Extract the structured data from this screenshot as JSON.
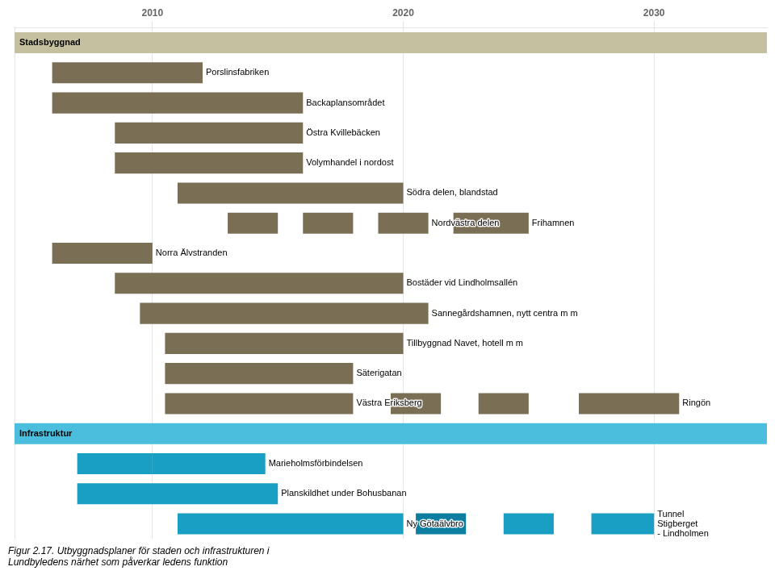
{
  "chart_data": {
    "type": "bar",
    "orientation": "horizontal",
    "subtitle": "Figur 2.17. Utbyggnadsplaner för staden och infrastrukturen i\nLundbyledens närhet som påverkar ledens funktion",
    "categories": [
      null,
      null,
      null,
      null,
      null,
      null,
      null,
      null,
      null,
      null,
      null,
      null,
      null,
      null,
      null,
      null,
      null
    ],
    "xlim": [
      2004.5,
      2034.5
    ],
    "xticks": [
      2010,
      2020,
      2030
    ],
    "grid": true,
    "tick_labels": "x",
    "data_labels": true,
    "series": [
      {
        "values": [
          [
            2004.5,
            2034.5
          ],
          null,
          null,
          null,
          null,
          null,
          null,
          null,
          null,
          null,
          null,
          null,
          null,
          [
            2004.5,
            2034.5
          ],
          null,
          null,
          null
        ],
        "colors": [
          "#c5c1a0",
          null,
          null,
          null,
          null,
          null,
          null,
          null,
          null,
          null,
          null,
          null,
          null,
          "#4bbedd",
          null,
          null,
          null
        ],
        "value_labels": [
          "Stadsbyggnad",
          null,
          null,
          null,
          null,
          null,
          null,
          null,
          null,
          null,
          null,
          null,
          null,
          "Infrastruktur",
          null,
          null,
          null
        ]
      },
      {
        "values": [
          null,
          [
            2006,
            2012
          ],
          [
            2006,
            2016
          ],
          [
            2008.5,
            2016
          ],
          [
            2008.5,
            2016
          ],
          [
            2011,
            2020
          ],
          [
            2013,
            2015
          ],
          [
            2006,
            2010
          ],
          [
            2008.5,
            2020
          ],
          [
            2009.5,
            2021
          ],
          [
            2010.5,
            2020
          ],
          [
            2010.5,
            2018
          ],
          [
            2010.5,
            2018
          ],
          null,
          [
            2010,
            2014.5
          ],
          [
            2007,
            2015
          ],
          [
            2011,
            2020
          ]
        ],
        "colors": [
          null,
          "#7a6e54",
          "#7a6e54",
          "#7a6e54",
          "#7a6e54",
          "#7a6e54",
          "#7a6e54",
          "#7a6e54",
          "#7a6e54",
          "#7a6e54",
          "#7a6e54",
          "#7a6e54",
          "#7a6e54",
          null,
          "#1a9fc4",
          "#1a9fc4",
          "#1a9fc4"
        ],
        "value_labels": [
          null,
          "Porslinsfabriken",
          "Backaplansområdet",
          "Östra Kvillebäcken",
          "Volymhandel i nordost",
          "Södra delen, blandstad",
          null,
          "Norra Älvstranden",
          "Bostäder vid Lindholmsallén",
          "Sannegårdshamnen, nytt centra m m",
          "Tillbyggnad Navet, hotell m m",
          "Säterigatan",
          "Västra Eriksberg",
          null,
          "Marieholmsförbindelsen",
          "Planskildhet under Bohusbanan",
          "Ny Götaälvbro"
        ]
      },
      {
        "values": [
          null,
          null,
          null,
          null,
          null,
          null,
          [
            2016,
            2018
          ],
          null,
          null,
          null,
          null,
          null,
          [
            2019.5,
            2021.5
          ],
          null,
          [
            2007,
            2010
          ],
          null,
          [
            2020.5,
            2022.5
          ]
        ],
        "colors": [
          null,
          null,
          null,
          null,
          null,
          null,
          "#7a6e54",
          null,
          null,
          null,
          null,
          null,
          "#7a6e54",
          null,
          "#1a9fc4",
          null,
          "#0d7da0"
        ]
      },
      {
        "values": [
          null,
          null,
          null,
          null,
          null,
          null,
          [
            2019,
            2021
          ],
          null,
          null,
          null,
          null,
          null,
          [
            2023,
            2025
          ],
          null,
          null,
          null,
          [
            2024,
            2026
          ]
        ],
        "colors": [
          null,
          null,
          null,
          null,
          null,
          null,
          "#7a6e54",
          null,
          null,
          null,
          null,
          null,
          "#7a6e54",
          null,
          null,
          null,
          "#1a9fc4"
        ],
        "value_labels": [
          null,
          null,
          null,
          null,
          null,
          null,
          "Nordvästra delen",
          null,
          null,
          null,
          null,
          null,
          null,
          null,
          null,
          null,
          null
        ]
      },
      {
        "values": [
          null,
          null,
          null,
          null,
          null,
          null,
          [
            2022,
            2025
          ],
          null,
          null,
          null,
          null,
          null,
          [
            2027,
            2031
          ],
          null,
          null,
          null,
          [
            2027.5,
            2030
          ]
        ],
        "colors": [
          null,
          null,
          null,
          null,
          null,
          null,
          "#7a6e54",
          null,
          null,
          null,
          null,
          null,
          "#7a6e54",
          null,
          null,
          null,
          "#1a9fc4"
        ],
        "value_labels": [
          null,
          null,
          null,
          null,
          null,
          null,
          "Frihamnen",
          null,
          null,
          null,
          null,
          null,
          "Ringön",
          null,
          null,
          null,
          "Tunnel\nStigberget\n- Lindholmen"
        ]
      }
    ]
  }
}
